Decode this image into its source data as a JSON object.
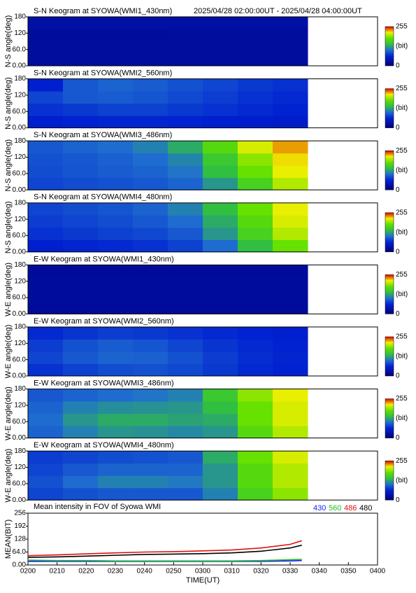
{
  "chart_data": [
    {
      "type": "heatmap",
      "title": "S-N Keogram at SYOWA(WMI1_430nm)",
      "subtitle": "2025/04/28 02:00:00UT - 2025/04/28 04:00:00UT",
      "ylabel": "N-S angle(deg)",
      "x": [
        126,
        138,
        150,
        162,
        174,
        186,
        198,
        210
      ],
      "y": [
        22.5,
        67.5,
        112.5,
        157.5
      ],
      "xlim": [
        120,
        240
      ],
      "ylim": [
        0,
        180
      ],
      "yticks": [
        {
          "value": 0,
          "label": "0.00"
        },
        {
          "value": 60,
          "label": "60.0"
        },
        120,
        180
      ],
      "clim": [
        0,
        255
      ],
      "colorbar": {
        "ticks": [
          0,
          255
        ],
        "label": "(bit)"
      },
      "values": [
        [
          25,
          25,
          25,
          25,
          25,
          25,
          25,
          25
        ],
        [
          25,
          25,
          25,
          26,
          26,
          26,
          26,
          26
        ],
        [
          24,
          24,
          24,
          24,
          25,
          25,
          25,
          25
        ],
        [
          30,
          30,
          30,
          30,
          30,
          30,
          30,
          30
        ]
      ]
    },
    {
      "type": "heatmap",
      "title": "S-N Keogram at SYOWA(WMI2_560nm)",
      "ylabel": "N-S angle(deg)",
      "x": [
        126,
        138,
        150,
        162,
        174,
        186,
        198,
        210
      ],
      "y": [
        22.5,
        67.5,
        112.5,
        157.5
      ],
      "xlim": [
        120,
        240
      ],
      "ylim": [
        0,
        180
      ],
      "yticks": [
        {
          "value": 0,
          "label": "0.00"
        },
        {
          "value": 60,
          "label": "60.0"
        },
        120,
        180
      ],
      "clim": [
        0,
        255
      ],
      "colorbar": {
        "ticks": [
          0,
          255
        ],
        "label": "(bit)"
      },
      "values": [
        [
          60,
          62,
          64,
          64,
          62,
          60,
          58,
          56
        ],
        [
          70,
          74,
          78,
          78,
          74,
          70,
          66,
          62
        ],
        [
          80,
          90,
          92,
          88,
          82,
          76,
          70,
          66
        ],
        [
          60,
          90,
          96,
          92,
          86,
          80,
          74,
          70
        ]
      ]
    },
    {
      "type": "heatmap",
      "title": "S-N Keogram at SYOWA(WMI3_486nm)",
      "ylabel": "N-S angle(deg)",
      "x": [
        126,
        138,
        150,
        162,
        174,
        186,
        198,
        210
      ],
      "y": [
        22.5,
        67.5,
        112.5,
        157.5
      ],
      "xlim": [
        120,
        240
      ],
      "ylim": [
        0,
        180
      ],
      "yticks": [
        {
          "value": 0,
          "label": "0.00"
        },
        {
          "value": 60,
          "label": "60.0"
        },
        120,
        180
      ],
      "clim": [
        0,
        255
      ],
      "colorbar": {
        "ticks": [
          0,
          255
        ],
        "label": "(bit)"
      },
      "values": [
        [
          80,
          84,
          86,
          90,
          96,
          120,
          160,
          200
        ],
        [
          84,
          88,
          92,
          96,
          104,
          140,
          180,
          215
        ],
        [
          86,
          90,
          94,
          100,
          112,
          150,
          190,
          220
        ],
        [
          90,
          96,
          100,
          110,
          130,
          170,
          210,
          230
        ]
      ]
    },
    {
      "type": "heatmap",
      "title": "S-N Keogram at SYOWA(WMI4_480nm)",
      "ylabel": "N-S angle(deg)",
      "x": [
        126,
        138,
        150,
        162,
        174,
        186,
        198,
        210
      ],
      "y": [
        22.5,
        67.5,
        112.5,
        157.5
      ],
      "xlim": [
        120,
        240
      ],
      "ylim": [
        0,
        180
      ],
      "yticks": [
        {
          "value": 0,
          "label": "0.00"
        },
        {
          "value": 60,
          "label": "60.0"
        },
        120,
        180
      ],
      "clim": [
        0,
        255
      ],
      "colorbar": {
        "ticks": [
          0,
          255
        ],
        "label": "(bit)"
      },
      "values": [
        [
          60,
          64,
          66,
          70,
          78,
          100,
          140,
          180
        ],
        [
          70,
          74,
          78,
          82,
          90,
          120,
          160,
          200
        ],
        [
          76,
          80,
          84,
          90,
          100,
          130,
          170,
          210
        ],
        [
          80,
          84,
          88,
          96,
          110,
          140,
          180,
          215
        ]
      ]
    },
    {
      "type": "heatmap",
      "title": "E-W Keogram at SYOWA(WMI1_430nm)",
      "ylabel": "W-E angle(deg)",
      "x": [
        126,
        138,
        150,
        162,
        174,
        186,
        198,
        210
      ],
      "y": [
        22.5,
        67.5,
        112.5,
        157.5
      ],
      "xlim": [
        120,
        240
      ],
      "ylim": [
        0,
        180
      ],
      "yticks": [
        {
          "value": 0,
          "label": "0.00"
        },
        {
          "value": 60,
          "label": "60.0"
        },
        120,
        180
      ],
      "clim": [
        0,
        255
      ],
      "colorbar": {
        "ticks": [
          0,
          255
        ],
        "label": "(bit)"
      },
      "values": [
        [
          22,
          22,
          22,
          22,
          22,
          22,
          22,
          22
        ],
        [
          24,
          24,
          24,
          24,
          24,
          24,
          24,
          24
        ],
        [
          24,
          24,
          24,
          24,
          24,
          24,
          24,
          24
        ],
        [
          22,
          22,
          22,
          22,
          22,
          22,
          22,
          22
        ]
      ]
    },
    {
      "type": "heatmap",
      "title": "E-W Keogram at SYOWA(WMI2_560nm)",
      "ylabel": "W-E angle(deg)",
      "x": [
        126,
        138,
        150,
        162,
        174,
        186,
        198,
        210
      ],
      "y": [
        22.5,
        67.5,
        112.5,
        157.5
      ],
      "xlim": [
        120,
        240
      ],
      "ylim": [
        0,
        180
      ],
      "yticks": [
        {
          "value": 0,
          "label": "0.00"
        },
        {
          "value": 60,
          "label": "60.0"
        },
        120,
        180
      ],
      "clim": [
        0,
        255
      ],
      "colorbar": {
        "ticks": [
          0,
          255
        ],
        "label": "(bit)"
      },
      "values": [
        [
          70,
          78,
          84,
          86,
          82,
          74,
          66,
          62
        ],
        [
          80,
          90,
          96,
          94,
          86,
          76,
          68,
          64
        ],
        [
          76,
          86,
          92,
          88,
          80,
          72,
          66,
          62
        ],
        [
          66,
          72,
          76,
          74,
          70,
          66,
          62,
          60
        ]
      ]
    },
    {
      "type": "heatmap",
      "title": "E-W Keogram at SYOWA(WMI3_486nm)",
      "ylabel": "W-E angle(deg)",
      "x": [
        126,
        138,
        150,
        162,
        174,
        186,
        198,
        210
      ],
      "y": [
        22.5,
        67.5,
        112.5,
        157.5
      ],
      "xlim": [
        120,
        240
      ],
      "ylim": [
        0,
        180
      ],
      "yticks": [
        {
          "value": 0,
          "label": "0.00"
        },
        {
          "value": 60,
          "label": "60.0"
        },
        120,
        180
      ],
      "clim": [
        0,
        255
      ],
      "colorbar": {
        "ticks": [
          0,
          255
        ],
        "label": "(bit)"
      },
      "values": [
        [
          96,
          110,
          120,
          118,
          114,
          120,
          170,
          200
        ],
        [
          100,
          120,
          130,
          130,
          126,
          130,
          180,
          210
        ],
        [
          96,
          110,
          116,
          118,
          120,
          140,
          180,
          210
        ],
        [
          90,
          96,
          100,
          104,
          110,
          150,
          190,
          215
        ]
      ]
    },
    {
      "type": "heatmap",
      "title": "E-W Keogram at SYOWA(WMI4_480nm)",
      "ylabel": "W-E angle(deg)",
      "x": [
        126,
        138,
        150,
        162,
        174,
        186,
        198,
        210
      ],
      "y": [
        22.5,
        67.5,
        112.5,
        157.5
      ],
      "xlim": [
        120,
        240
      ],
      "ylim": [
        0,
        180
      ],
      "yticks": [
        {
          "value": 0,
          "label": "0.00"
        },
        {
          "value": 60,
          "label": "60.0"
        },
        120,
        180
      ],
      "clim": [
        0,
        255
      ],
      "colorbar": {
        "ticks": [
          0,
          255
        ],
        "label": "(bit)"
      },
      "values": [
        [
          80,
          86,
          90,
          90,
          90,
          110,
          160,
          190
        ],
        [
          86,
          100,
          110,
          110,
          106,
          120,
          170,
          200
        ],
        [
          80,
          90,
          96,
          96,
          96,
          120,
          170,
          200
        ],
        [
          76,
          80,
          84,
          86,
          90,
          130,
          180,
          210
        ]
      ]
    },
    {
      "type": "line",
      "title": "Mean intensity in FOV of Syowa WMI",
      "xlabel": "TIME(UT)",
      "ylabel": "MEAN(BIT)",
      "x": [
        120,
        130,
        140,
        150,
        160,
        170,
        180,
        190,
        200,
        210,
        214
      ],
      "xlim": [
        120,
        240
      ],
      "ylim": [
        0,
        256
      ],
      "xticks": [
        {
          "value": 120,
          "label": "0200"
        },
        {
          "value": 130,
          "label": "0210"
        },
        {
          "value": 140,
          "label": "0220"
        },
        {
          "value": 150,
          "label": "0230"
        },
        {
          "value": 160,
          "label": "0240"
        },
        {
          "value": 170,
          "label": "0250"
        },
        {
          "value": 180,
          "label": "0300"
        },
        {
          "value": 190,
          "label": "0310"
        },
        {
          "value": 200,
          "label": "0320"
        },
        {
          "value": 210,
          "label": "0330"
        },
        {
          "value": 220,
          "label": "0340"
        },
        {
          "value": 230,
          "label": "0350"
        },
        {
          "value": 240,
          "label": "0400"
        }
      ],
      "yticks": [
        {
          "value": 0,
          "label": "0.00"
        },
        {
          "value": 64,
          "label": "64.0"
        },
        128,
        192,
        256
      ],
      "series": [
        {
          "name": "430",
          "color": "#1a1aff",
          "values": [
            18,
            18,
            18,
            18,
            18,
            18,
            18,
            18,
            18,
            20,
            22
          ]
        },
        {
          "name": "560",
          "color": "#1fbf1f",
          "values": [
            24,
            22,
            22,
            20,
            20,
            20,
            20,
            20,
            22,
            26,
            28
          ]
        },
        {
          "name": "486",
          "color": "#e01010",
          "values": [
            46,
            50,
            55,
            60,
            64,
            66,
            70,
            74,
            84,
            102,
            120
          ]
        },
        {
          "name": "480",
          "color": "#000000",
          "values": [
            38,
            40,
            44,
            48,
            52,
            54,
            56,
            60,
            68,
            84,
            98
          ]
        }
      ]
    }
  ]
}
